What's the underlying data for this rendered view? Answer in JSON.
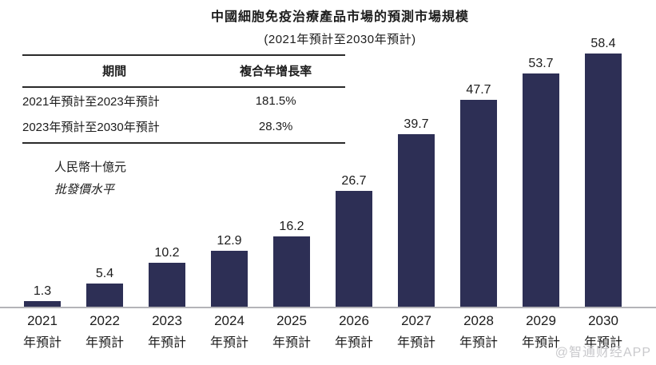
{
  "watermark": "@智通财经APP",
  "colors": {
    "bar": "#2d2f55",
    "baseline": "#b4b4b8",
    "text": "#1c1c1c",
    "watermark": "#c9c9cc",
    "table_rule": "#2a2a2a"
  },
  "chart_data": {
    "type": "bar",
    "title": "中國細胞免疫治療產品市場的預測市場規模",
    "subtitle": "(2021年預計至2030年預計)",
    "categories": [
      "2021",
      "2022",
      "2023",
      "2024",
      "2025",
      "2026",
      "2027",
      "2028",
      "2029",
      "2030"
    ],
    "category_suffix": "年預計",
    "values": [
      1.3,
      5.4,
      10.2,
      12.9,
      16.2,
      26.7,
      39.7,
      47.7,
      53.7,
      58.4
    ],
    "unit": "人民幣十億元",
    "unit_note": "批發價水平",
    "ylim": [
      0,
      60
    ],
    "grid": false,
    "legend": false,
    "bar_color": "#2d2f55",
    "value_labels_shown": true,
    "cagr_table": {
      "headers": [
        "期間",
        "複合年增長率"
      ],
      "rows": [
        [
          "2021年預計至2023年預計",
          "181.5%"
        ],
        [
          "2023年預計至2030年預計",
          "28.3%"
        ]
      ]
    }
  }
}
